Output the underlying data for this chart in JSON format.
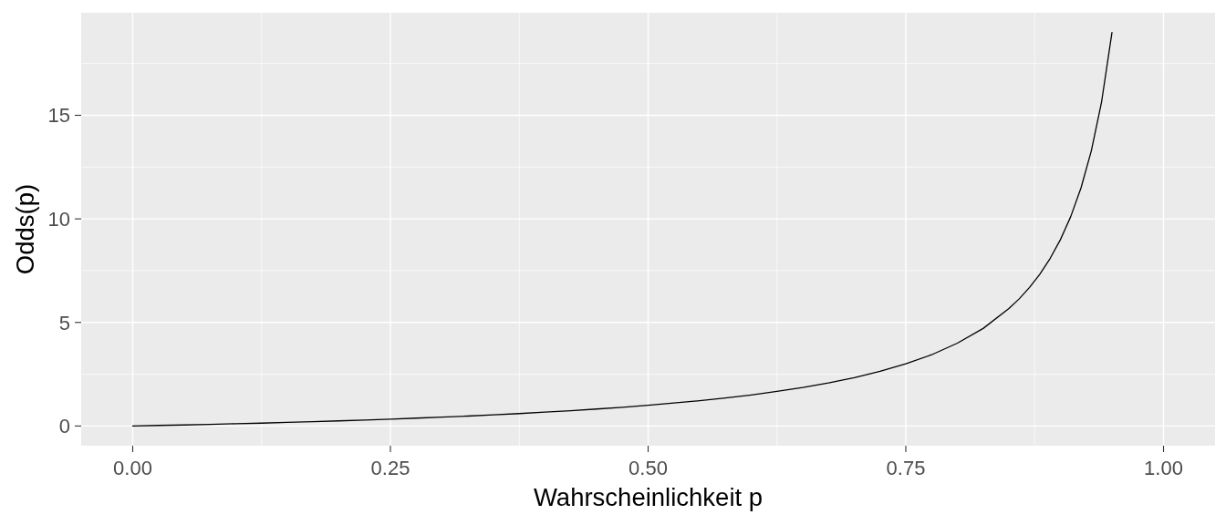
{
  "chart_data": {
    "type": "line",
    "xlabel": "Wahrscheinlichkeit p",
    "ylabel": "Odds(p)",
    "x": [
      0,
      0.025,
      0.05,
      0.075,
      0.1,
      0.125,
      0.15,
      0.175,
      0.2,
      0.225,
      0.25,
      0.275,
      0.3,
      0.325,
      0.35,
      0.375,
      0.4,
      0.425,
      0.45,
      0.475,
      0.5,
      0.525,
      0.55,
      0.575,
      0.6,
      0.625,
      0.65,
      0.675,
      0.7,
      0.725,
      0.75,
      0.775,
      0.8,
      0.825,
      0.85,
      0.86,
      0.87,
      0.88,
      0.89,
      0.9,
      0.91,
      0.92,
      0.93,
      0.94,
      0.95
    ],
    "values": [
      0,
      0.03,
      0.05,
      0.08,
      0.11,
      0.14,
      0.18,
      0.21,
      0.25,
      0.29,
      0.33,
      0.38,
      0.43,
      0.48,
      0.54,
      0.6,
      0.67,
      0.74,
      0.82,
      0.9,
      1,
      1.11,
      1.22,
      1.35,
      1.5,
      1.67,
      1.86,
      2.08,
      2.33,
      2.64,
      3,
      3.44,
      4,
      4.71,
      5.67,
      6.14,
      6.69,
      7.33,
      8.09,
      9,
      10.11,
      11.5,
      13.29,
      15.67,
      19
    ],
    "color": "#000000",
    "xlim": [
      -0.05,
      1.05
    ],
    "ylim": [
      -0.95,
      19.95
    ],
    "xticks": [
      {
        "value": 0,
        "label": "0.00"
      },
      {
        "value": 0.25,
        "label": "0.25"
      },
      {
        "value": 0.5,
        "label": "0.50"
      },
      {
        "value": 0.75,
        "label": "0.75"
      },
      {
        "value": 1,
        "label": "1.00"
      }
    ],
    "yticks": [
      0,
      5,
      10,
      15
    ],
    "grid": true
  }
}
